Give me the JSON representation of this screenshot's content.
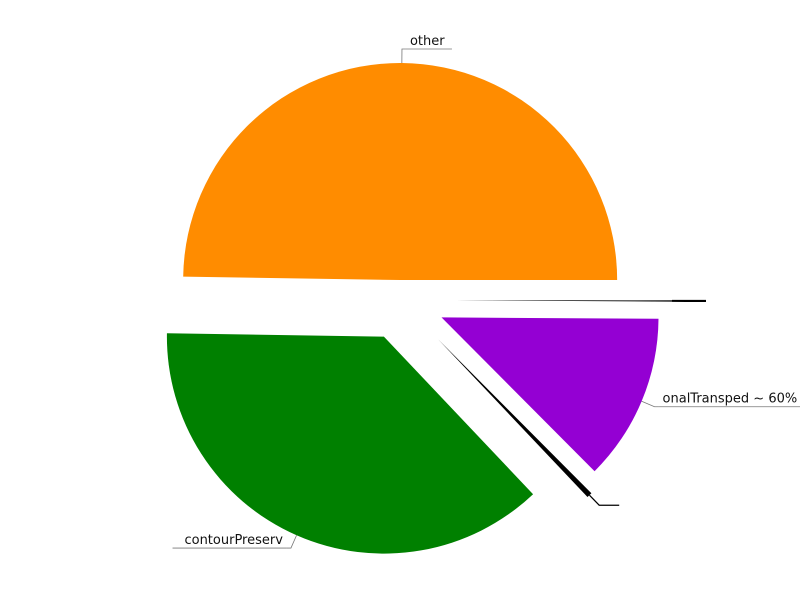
{
  "chart_data": {
    "type": "pie",
    "title": "",
    "slices": [
      {
        "label": "other",
        "value": 50,
        "color": "#ff8c00"
      },
      {
        "label": "contourPreserv",
        "value": 37.5,
        "color": "#008000"
      },
      {
        "label": "",
        "value": 0.4,
        "color": "#000000"
      },
      {
        "label": "onalTransped ~ 60%",
        "value": 12.5,
        "color": "#9400d3"
      },
      {
        "label": "",
        "value": 0.05,
        "color": "#000000"
      },
      {
        "label": "",
        "value": 0.05,
        "color": "#000000"
      }
    ]
  }
}
